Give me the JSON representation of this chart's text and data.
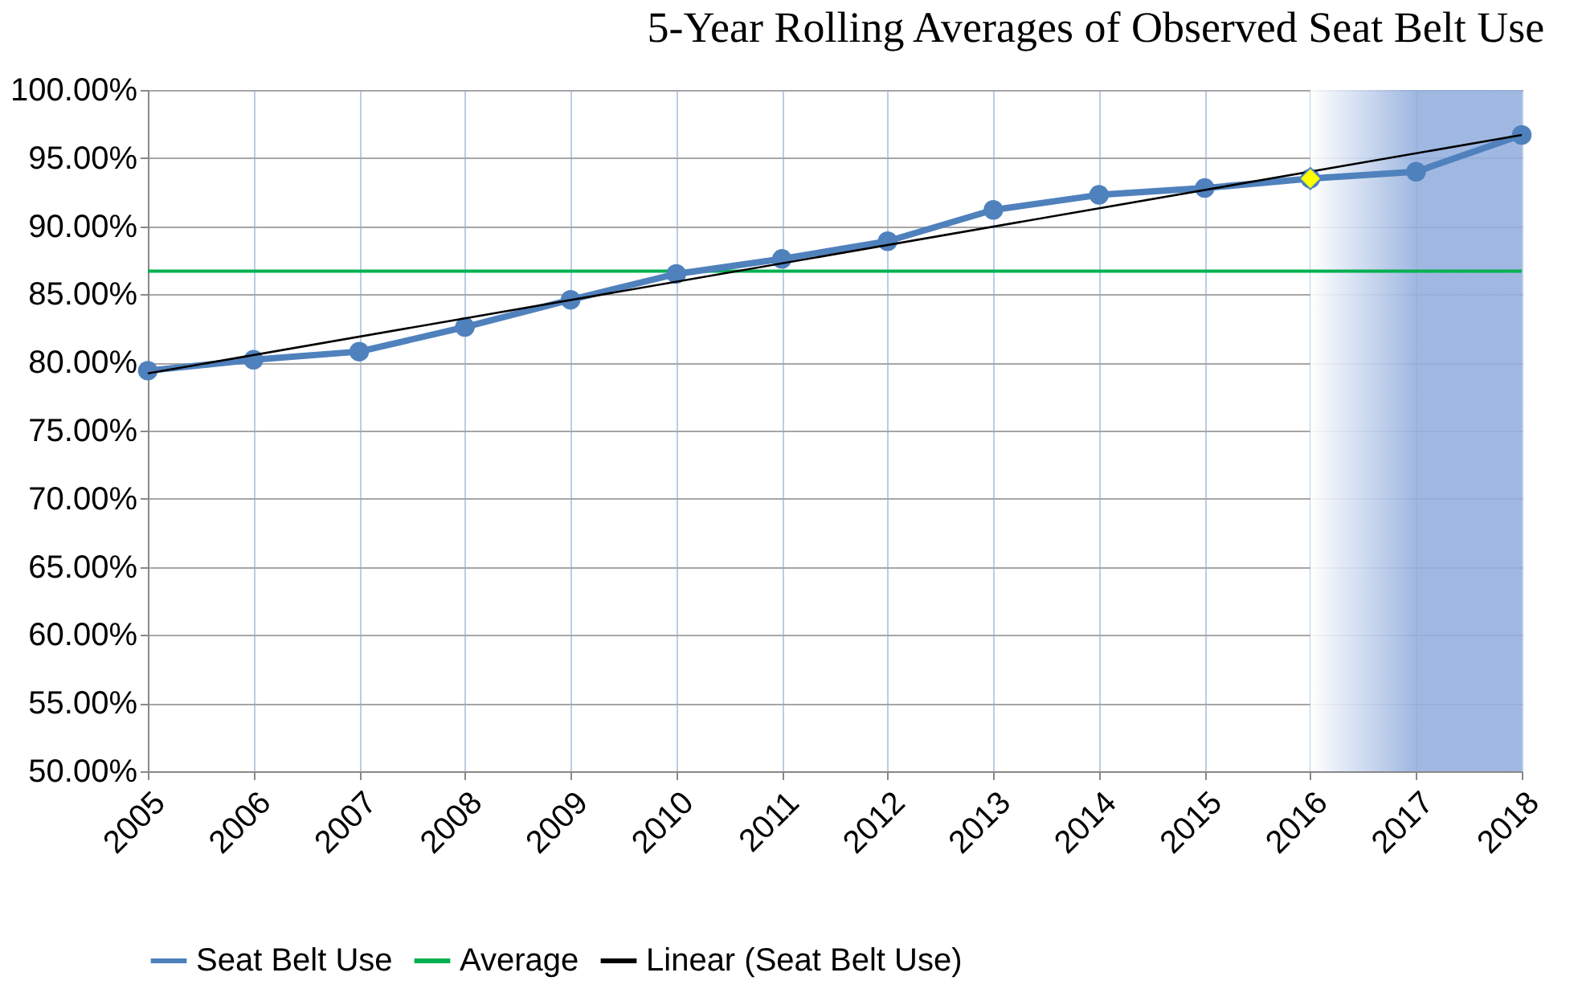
{
  "chart_data": {
    "type": "line",
    "title": "5-Year Rolling Averages of Observed Seat Belt Use",
    "x": [
      2005,
      2006,
      2007,
      2008,
      2009,
      2010,
      2011,
      2012,
      2013,
      2014,
      2015,
      2016,
      2017,
      2018
    ],
    "series": [
      {
        "name": "Seat Belt Use",
        "color": "#4f81bd",
        "marker": "circle",
        "values": [
          79.4,
          80.2,
          80.8,
          82.6,
          84.6,
          86.5,
          87.6,
          88.9,
          91.2,
          92.3,
          92.8,
          93.5,
          94.0,
          96.7
        ]
      },
      {
        "name": "Linear (Seat Belt Use)",
        "type": "line",
        "color": "#000000",
        "x": [
          2005,
          2018
        ],
        "values": [
          79.2,
          96.7
        ]
      },
      {
        "type": "scatter",
        "color": "#ffff00",
        "marker": "diamond",
        "x": [
          2016
        ],
        "values": [
          93.5
        ]
      }
    ],
    "ref_lines": [
      {
        "axis": "y",
        "value": 86.7,
        "label": "Average",
        "color": "#00b050"
      }
    ],
    "bands": [
      {
        "axis": "x",
        "from": 2016,
        "to": 2018,
        "color": "#95b0de"
      }
    ],
    "xlim": [
      2005,
      2018
    ],
    "xticks": [
      2005,
      2006,
      2007,
      2008,
      2009,
      2010,
      2011,
      2012,
      2013,
      2014,
      2015,
      2016,
      2017,
      2018
    ],
    "ylim": [
      50,
      100
    ],
    "yticks": [
      {
        "value": 50,
        "label": "50.00%"
      },
      {
        "value": 55,
        "label": "55.00%"
      },
      {
        "value": 60,
        "label": "60.00%"
      },
      {
        "value": 65,
        "label": "65.00%"
      },
      {
        "value": 70,
        "label": "70.00%"
      },
      {
        "value": 75,
        "label": "75.00%"
      },
      {
        "value": 80,
        "label": "80.00%"
      },
      {
        "value": 85,
        "label": "85.00%"
      },
      {
        "value": 90,
        "label": "90.00%"
      },
      {
        "value": 95,
        "label": "95.00%"
      },
      {
        "value": 100,
        "label": "100.00%"
      }
    ],
    "grid": true,
    "legend": "bottom"
  }
}
